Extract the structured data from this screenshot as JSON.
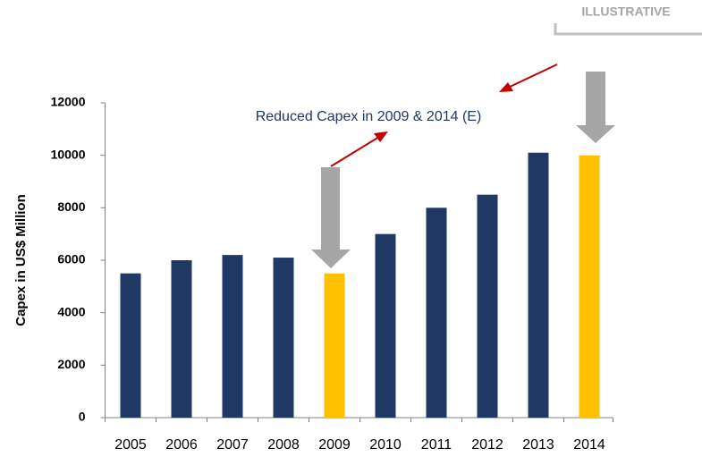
{
  "chart_data": {
    "type": "bar",
    "tag": "ILLUSTRATIVE",
    "annotation": "Reduced Capex in 2009 & 2014 (E)",
    "y_label": "Capex in US$ Million",
    "categories": [
      "2005",
      "2006",
      "2007",
      "2008",
      "2009",
      "2010",
      "2011",
      "2012",
      "2013",
      "2014"
    ],
    "values": [
      5500,
      6000,
      6200,
      6100,
      5500,
      7000,
      8000,
      8500,
      10100,
      10000
    ],
    "colors": [
      "#1f3864",
      "#1f3864",
      "#1f3864",
      "#1f3864",
      "#ffc000",
      "#1f3864",
      "#1f3864",
      "#1f3864",
      "#1f3864",
      "#ffc000"
    ],
    "ylim": [
      0,
      12000
    ],
    "yticks": [
      0,
      2000,
      4000,
      6000,
      8000,
      10000,
      12000
    ]
  }
}
